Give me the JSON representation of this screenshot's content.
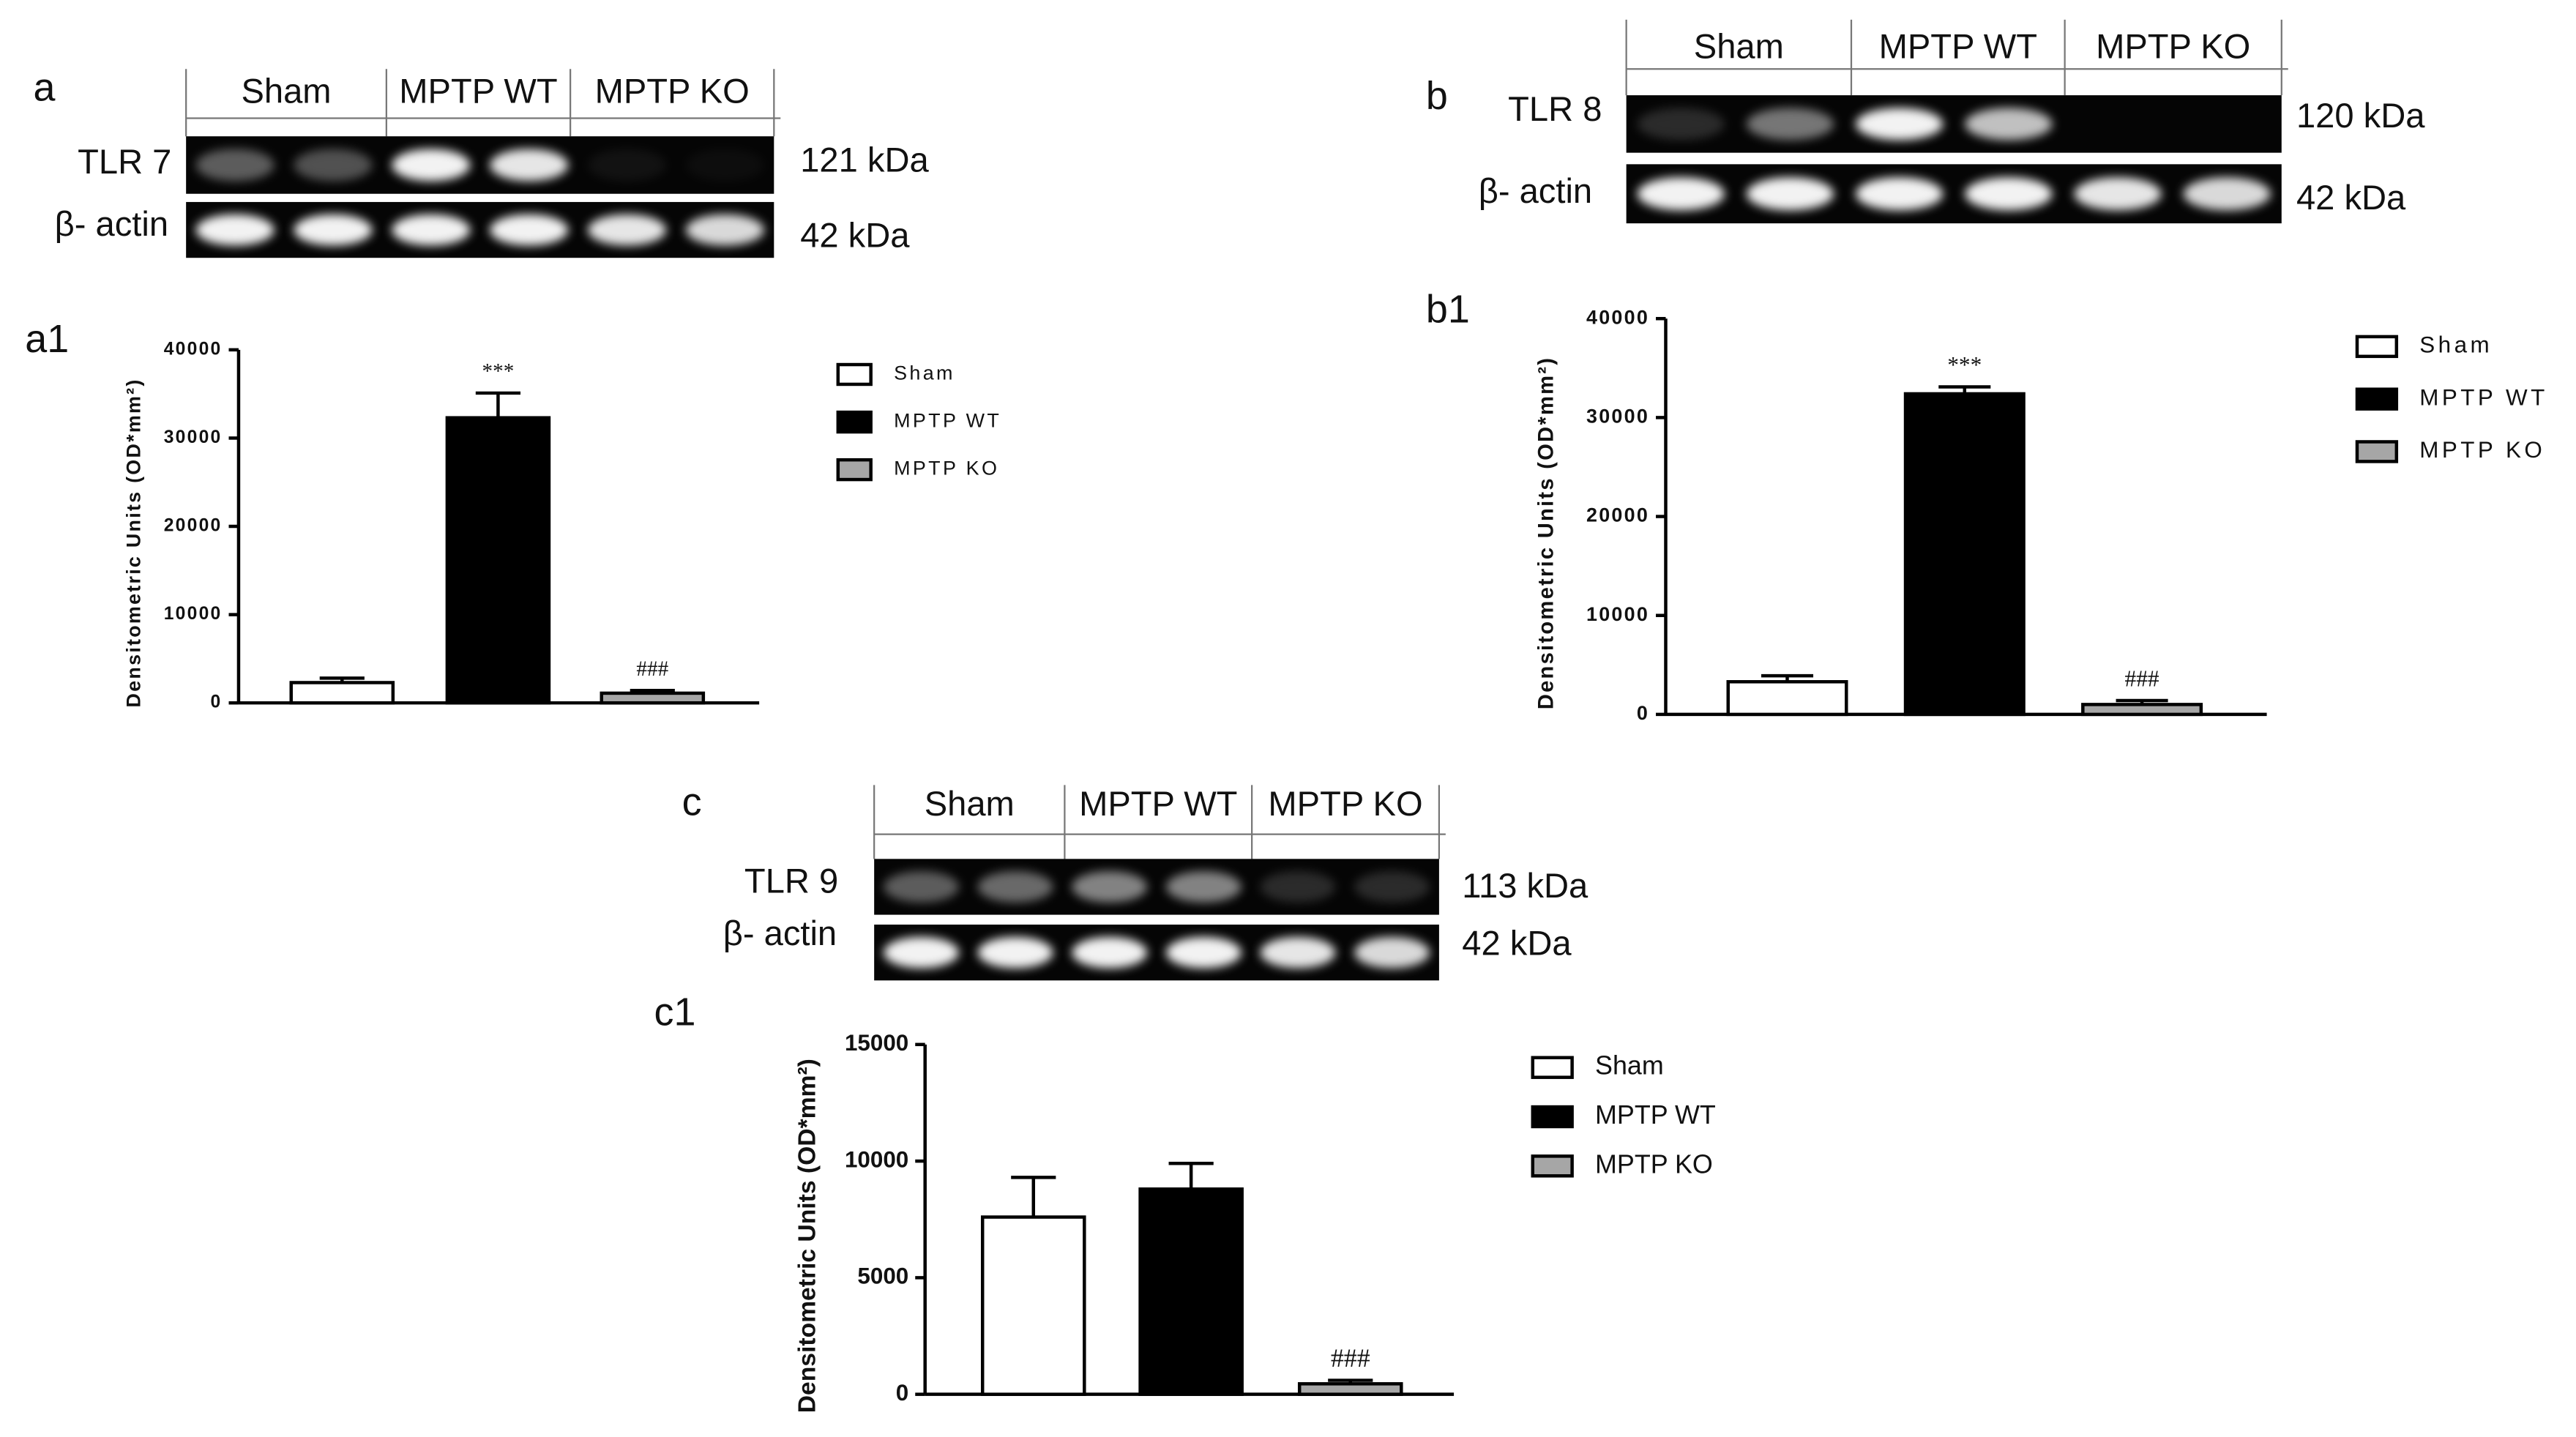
{
  "panels": [
    {
      "label": "a",
      "protein": "TLR 7",
      "protein_kda": "121 kDa",
      "control": "β- actin",
      "control_kda": "42 kDa",
      "groups": [
        "Sham",
        "MPTP WT",
        "MPTP KO"
      ]
    },
    {
      "label": "b",
      "protein": "TLR 8",
      "protein_kda": "120 kDa",
      "control": "β- actin",
      "control_kda": "42 kDa",
      "groups": [
        "Sham",
        "MPTP WT",
        "MPTP KO"
      ]
    },
    {
      "label": "c",
      "protein": "TLR 9",
      "protein_kda": "113 kDa",
      "control": "β- actin",
      "control_kda": "42 kDa",
      "groups": [
        "Sham",
        "MPTP WT",
        "MPTP KO"
      ]
    }
  ],
  "chart_data": [
    {
      "type": "bar",
      "label": "a1",
      "ylabel": "Densitometric Units (OD*mm²)",
      "categories": [
        "Sham",
        "MPTP WT",
        "MPTP KO"
      ],
      "values": [
        2300,
        32300,
        1100
      ],
      "errors": [
        500,
        2800,
        300
      ],
      "annotations": [
        null,
        "***",
        "###"
      ],
      "colors": [
        "#ffffff",
        "#000000",
        "#a6a6a6"
      ],
      "ylim": [
        0,
        40000
      ],
      "yticks": [
        0,
        10000,
        20000,
        30000,
        40000
      ]
    },
    {
      "type": "bar",
      "label": "b1",
      "ylabel": "Densitometric Units (OD*mm²)",
      "categories": [
        "Sham",
        "MPTP WT",
        "MPTP KO"
      ],
      "values": [
        3300,
        32400,
        1000
      ],
      "errors": [
        600,
        700,
        400
      ],
      "annotations": [
        null,
        "***",
        "###"
      ],
      "colors": [
        "#ffffff",
        "#000000",
        "#a6a6a6"
      ],
      "ylim": [
        0,
        40000
      ],
      "yticks": [
        0,
        10000,
        20000,
        30000,
        40000
      ]
    },
    {
      "type": "bar",
      "label": "c1",
      "ylabel": "Densitometric Units (OD*mm²)",
      "categories": [
        "Sham",
        "MPTP WT",
        "MPTP KO"
      ],
      "values": [
        7600,
        8800,
        450
      ],
      "errors": [
        1700,
        1100,
        150
      ],
      "annotations": [
        null,
        null,
        "###"
      ],
      "colors": [
        "#ffffff",
        "#000000",
        "#a6a6a6"
      ],
      "ylim": [
        0,
        15000
      ],
      "yticks": [
        0,
        5000,
        10000,
        15000
      ]
    }
  ]
}
